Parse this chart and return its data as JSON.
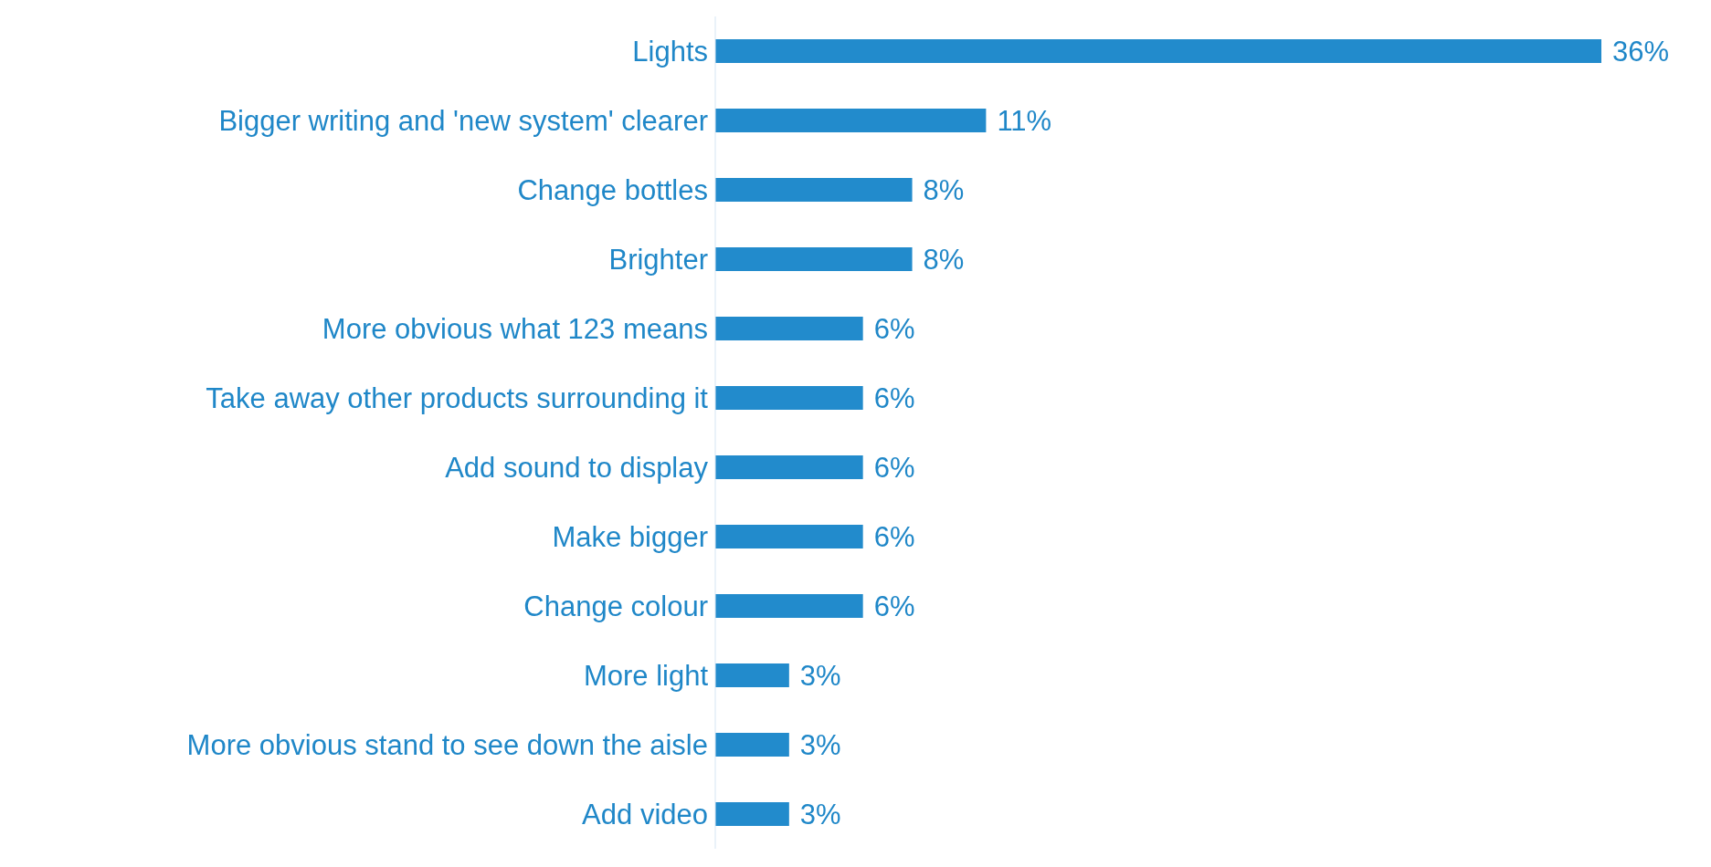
{
  "chart_data": {
    "type": "bar",
    "orientation": "horizontal",
    "categories": [
      "Lights",
      "Bigger writing and 'new system' clearer",
      "Change bottles",
      "Brighter",
      "More obvious what 123 means",
      "Take away other products surrounding it",
      "Add sound to display",
      "Make bigger",
      "Change colour",
      "More light",
      "More obvious stand to see down the aisle",
      "Add video"
    ],
    "values": [
      36,
      11,
      8,
      8,
      6,
      6,
      6,
      6,
      6,
      3,
      3,
      3
    ],
    "value_labels": [
      "36%",
      "11%",
      "8%",
      "8%",
      "6%",
      "6%",
      "6%",
      "6%",
      "6%",
      "3%",
      "3%",
      "3%"
    ],
    "color": "#228bcc",
    "tick_labels": "y"
  }
}
